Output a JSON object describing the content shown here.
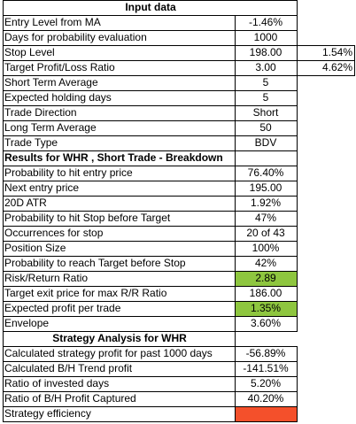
{
  "input_header": "Input data",
  "inputs": [
    {
      "label": "Entry Level from MA",
      "value": "-1.46%",
      "extra": ""
    },
    {
      "label": "Days for probability evaluation",
      "value": "1000",
      "extra": ""
    },
    {
      "label": "Stop Level",
      "value": "198.00",
      "extra": "1.54%"
    },
    {
      "label": "Target Profit/Loss Ratio",
      "value": "3.00",
      "extra": "4.62%"
    },
    {
      "label": "Short Term Average",
      "value": "5",
      "extra": ""
    },
    {
      "label": "Expected holding days",
      "value": "5",
      "extra": ""
    },
    {
      "label": "Trade Direction",
      "value": "Short",
      "extra": ""
    },
    {
      "label": "Long Term Average",
      "value": "50",
      "extra": ""
    },
    {
      "label": "Trade Type",
      "value": "BDV",
      "extra": ""
    }
  ],
  "results_header": "Results for WHR , Short Trade - Breakdown",
  "results": [
    {
      "label": "Probability to hit entry price",
      "value": "76.40%"
    },
    {
      "label": "Next entry price",
      "value": "195.00"
    },
    {
      "label": "20D ATR",
      "value": "1.92%"
    },
    {
      "label": "Probability to hit Stop before Target",
      "value": "47%"
    },
    {
      "label": "Occurrences for stop",
      "value": "20 of 43"
    },
    {
      "label": "Position Size",
      "value": "100%"
    },
    {
      "label": "Probability to reach Target before Stop",
      "value": "42%"
    },
    {
      "label": "Risk/Return Ratio",
      "value": "2.89"
    },
    {
      "label": "Target exit price for max R/R Ratio",
      "value": "186.00"
    },
    {
      "label": "Expected profit per trade",
      "value": "1.35%"
    },
    {
      "label": "Envelope",
      "value": "3.60%"
    }
  ],
  "strategy_header": "Strategy Analysis for WHR",
  "strategy": [
    {
      "label": "Calculated strategy profit for past 1000 days",
      "value": "-56.89%"
    },
    {
      "label": "Calculated B/H Trend profit",
      "value": "-141.51%"
    },
    {
      "label": "Ratio of invested days",
      "value": "5.20%"
    },
    {
      "label": "Ratio of B/H Profit Captured",
      "value": "40.20%"
    },
    {
      "label": "Strategy efficiency",
      "value": ""
    }
  ],
  "colors": {
    "highlight_green": "#8ec63f",
    "highlight_red": "#f4502b"
  }
}
